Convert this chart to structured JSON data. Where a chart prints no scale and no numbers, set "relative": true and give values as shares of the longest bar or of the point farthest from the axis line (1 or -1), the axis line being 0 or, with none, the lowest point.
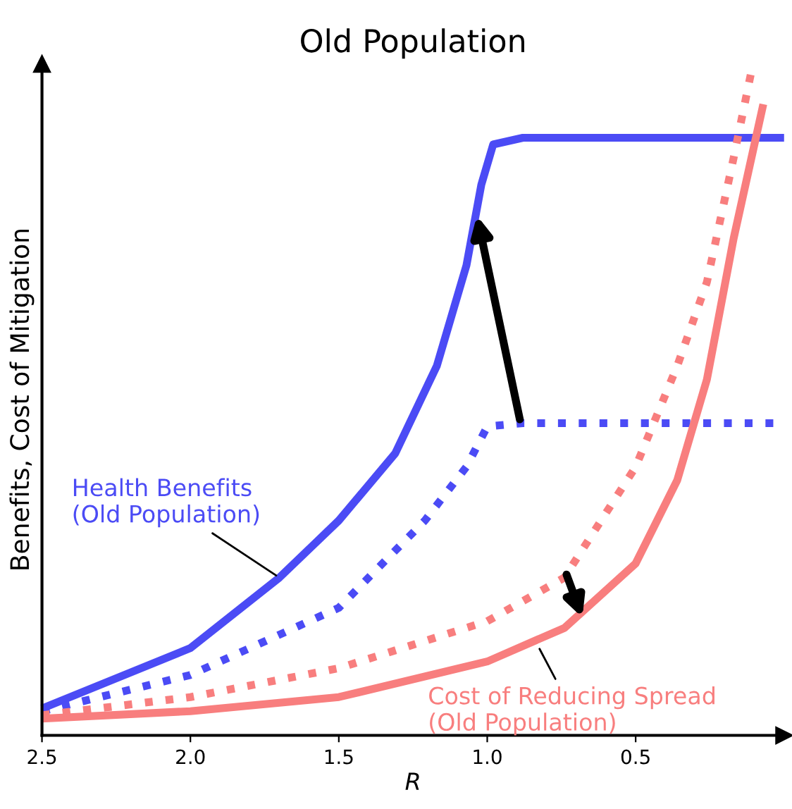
{
  "chart_data": {
    "type": "line",
    "title": "Old Population",
    "xlabel": "R",
    "ylabel": "Benefits, Cost of Mitigation",
    "relative": true,
    "xlim": [
      2.5,
      0.0
    ],
    "xticks": [
      {
        "value": 2.5,
        "label": "2.5"
      },
      {
        "value": 2.0,
        "label": "2.0"
      },
      {
        "value": 1.5,
        "label": "1.5"
      },
      {
        "value": 1.0,
        "label": "1.0"
      },
      {
        "value": 0.5,
        "label": "0.5"
      }
    ],
    "grid": false,
    "legend": false,
    "marker": "none",
    "series": [
      {
        "color": "#4b4bf5",
        "line_style": "solid",
        "x": [
          2.5,
          2.0,
          1.7,
          1.5,
          1.31,
          1.17,
          1.07,
          1.02,
          0.98,
          0.88,
          0.5,
          0.0
        ],
        "values": [
          0.04,
          0.13,
          0.235,
          0.32,
          0.42,
          0.55,
          0.7,
          0.82,
          0.88,
          0.89,
          0.89,
          0.89
        ]
      },
      {
        "color": "#4b4bf5",
        "line_style": "dotted",
        "x": [
          2.5,
          2.0,
          1.5,
          1.21,
          1.07,
          1.0,
          0.88,
          0.0
        ],
        "values": [
          0.036,
          0.09,
          0.19,
          0.32,
          0.4,
          0.46,
          0.465,
          0.465
        ]
      },
      {
        "color": "#f87e7e",
        "line_style": "solid",
        "x": [
          2.5,
          2.0,
          1.5,
          1.0,
          0.74,
          0.5,
          0.36,
          0.26,
          0.17,
          0.07
        ],
        "values": [
          0.025,
          0.036,
          0.057,
          0.11,
          0.16,
          0.256,
          0.38,
          0.53,
          0.74,
          0.94
        ]
      },
      {
        "color": "#f87e7e",
        "line_style": "dotted",
        "x": [
          2.5,
          2.0,
          1.5,
          1.0,
          0.74,
          0.5,
          0.36,
          0.26,
          0.17,
          0.105
        ],
        "values": [
          0.03,
          0.057,
          0.1,
          0.17,
          0.235,
          0.4,
          0.55,
          0.675,
          0.86,
          1.0
        ]
      }
    ],
    "annotations": [
      {
        "text": "Health Benefits\n(Old Population)",
        "x": 1.7,
        "y": 0.235
      },
      {
        "text": "Cost of Reducing Spread\n(Old Population)",
        "x": 0.83,
        "y": 0.134
      }
    ]
  }
}
